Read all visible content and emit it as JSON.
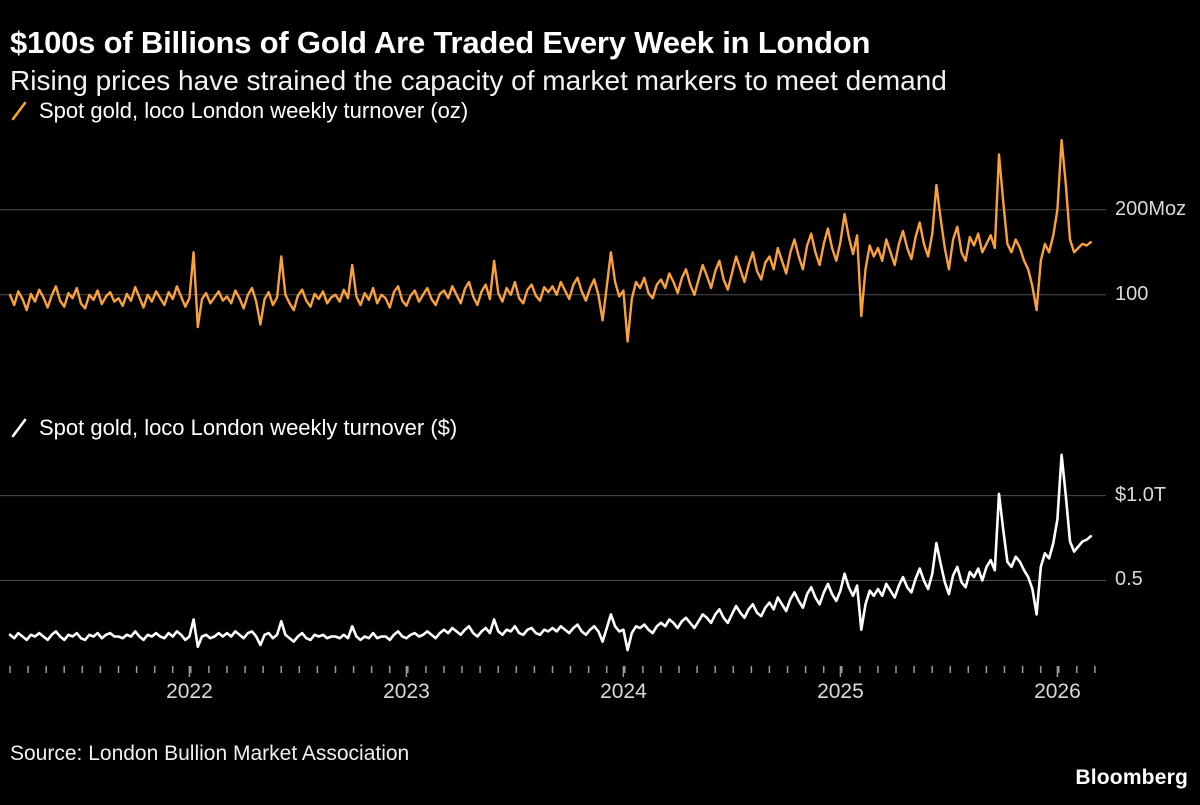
{
  "header": {
    "title": "$100s of Billions of Gold Are Traded Every Week in London",
    "subtitle": "Rising prices have strained the capacity of market markers to meet demand"
  },
  "source": "Source: London Bullion Market Association",
  "brand": "Bloomberg",
  "colors": {
    "background": "#000000",
    "oz_line": "#f9a13c",
    "usd_line": "#ffffff",
    "grid": "#4d4d4d",
    "tick": "#9a9a9a",
    "axis_text": "#d9d9d9",
    "text": "#ffffff"
  },
  "x_axis": {
    "weeks_total": 260,
    "tick_every_weeks": 4.333,
    "years": [
      {
        "label": "2022",
        "week": 43
      },
      {
        "label": "2023",
        "week": 95
      },
      {
        "label": "2024",
        "week": 147
      },
      {
        "label": "2025",
        "week": 199
      },
      {
        "label": "2026",
        "week": 251
      }
    ]
  },
  "chart_data": [
    {
      "name": "spot-gold-oz",
      "type": "line",
      "legend": "Spot gold, loco London weekly turnover (oz)",
      "unit": "Moz",
      "color": "#f9a13c",
      "stroke_width": 2.4,
      "ylim": [
        35,
        288
      ],
      "grid": true,
      "legend_position": "top-left",
      "gridlines": [
        {
          "value": 200,
          "label": "200Moz"
        },
        {
          "value": 100,
          "label": "100"
        }
      ],
      "values": [
        100,
        88,
        104,
        95,
        82,
        101,
        92,
        106,
        97,
        85,
        99,
        110,
        93,
        86,
        102,
        96,
        108,
        90,
        84,
        100,
        94,
        105,
        89,
        98,
        103,
        92,
        96,
        87,
        101,
        93,
        109,
        97,
        85,
        100,
        92,
        104,
        96,
        88,
        103,
        95,
        110,
        98,
        86,
        96,
        150,
        62,
        95,
        102,
        90,
        97,
        104,
        93,
        98,
        90,
        105,
        96,
        84,
        100,
        108,
        92,
        65,
        95,
        103,
        88,
        97,
        145,
        100,
        90,
        82,
        99,
        106,
        93,
        86,
        101,
        95,
        104,
        90,
        97,
        100,
        92,
        106,
        96,
        135,
        98,
        88,
        102,
        94,
        108,
        90,
        100,
        96,
        85,
        103,
        110,
        93,
        87,
        99,
        105,
        92,
        100,
        108,
        95,
        88,
        101,
        105,
        96,
        110,
        100,
        90,
        107,
        115,
        98,
        88,
        104,
        112,
        95,
        140,
        102,
        92,
        108,
        100,
        115,
        96,
        90,
        106,
        112,
        99,
        93,
        109,
        103,
        110,
        100,
        115,
        105,
        95,
        112,
        120,
        104,
        93,
        108,
        118,
        100,
        70,
        110,
        150,
        115,
        98,
        105,
        45,
        95,
        115,
        108,
        120,
        102,
        96,
        112,
        118,
        108,
        125,
        115,
        102,
        120,
        130,
        112,
        100,
        118,
        135,
        122,
        108,
        128,
        140,
        118,
        106,
        125,
        145,
        130,
        115,
        135,
        150,
        128,
        118,
        138,
        145,
        130,
        155,
        140,
        125,
        150,
        165,
        145,
        130,
        158,
        172,
        150,
        135,
        160,
        178,
        155,
        140,
        162,
        195,
        168,
        148,
        170,
        75,
        130,
        158,
        145,
        155,
        140,
        165,
        150,
        135,
        160,
        175,
        155,
        142,
        168,
        185,
        160,
        145,
        172,
        229,
        190,
        155,
        130,
        165,
        180,
        150,
        140,
        168,
        158,
        172,
        150,
        160,
        170,
        155,
        265,
        210,
        160,
        150,
        165,
        155,
        140,
        130,
        110,
        82,
        140,
        160,
        150,
        170,
        200,
        282,
        230,
        165,
        150,
        155,
        160,
        158,
        162
      ]
    },
    {
      "name": "spot-gold-usd",
      "type": "line",
      "legend": "Spot gold, loco London weekly turnover ($)",
      "unit": "$T",
      "color": "#ffffff",
      "stroke_width": 2.6,
      "ylim": [
        0.02,
        1.28
      ],
      "grid": true,
      "legend_position": "top-left",
      "gridlines": [
        {
          "value": 1.0,
          "label": "$1.0T"
        },
        {
          "value": 0.5,
          "label": "0.5"
        }
      ],
      "values": [
        0.18,
        0.16,
        0.19,
        0.17,
        0.15,
        0.18,
        0.17,
        0.19,
        0.17,
        0.15,
        0.18,
        0.2,
        0.17,
        0.15,
        0.18,
        0.17,
        0.19,
        0.16,
        0.15,
        0.18,
        0.17,
        0.19,
        0.16,
        0.18,
        0.19,
        0.17,
        0.17,
        0.16,
        0.18,
        0.17,
        0.2,
        0.17,
        0.15,
        0.18,
        0.17,
        0.19,
        0.17,
        0.16,
        0.19,
        0.17,
        0.2,
        0.18,
        0.15,
        0.17,
        0.27,
        0.11,
        0.17,
        0.18,
        0.16,
        0.17,
        0.19,
        0.17,
        0.19,
        0.17,
        0.2,
        0.18,
        0.16,
        0.19,
        0.2,
        0.17,
        0.12,
        0.18,
        0.19,
        0.16,
        0.18,
        0.26,
        0.18,
        0.16,
        0.14,
        0.17,
        0.19,
        0.16,
        0.15,
        0.18,
        0.17,
        0.18,
        0.16,
        0.17,
        0.17,
        0.16,
        0.18,
        0.16,
        0.23,
        0.17,
        0.15,
        0.17,
        0.16,
        0.19,
        0.16,
        0.17,
        0.17,
        0.15,
        0.18,
        0.2,
        0.17,
        0.16,
        0.18,
        0.19,
        0.17,
        0.18,
        0.2,
        0.18,
        0.16,
        0.19,
        0.21,
        0.19,
        0.22,
        0.2,
        0.18,
        0.21,
        0.23,
        0.19,
        0.17,
        0.2,
        0.22,
        0.19,
        0.27,
        0.2,
        0.18,
        0.21,
        0.2,
        0.23,
        0.19,
        0.18,
        0.21,
        0.22,
        0.19,
        0.18,
        0.21,
        0.2,
        0.22,
        0.2,
        0.23,
        0.21,
        0.19,
        0.22,
        0.24,
        0.2,
        0.18,
        0.21,
        0.23,
        0.2,
        0.14,
        0.22,
        0.3,
        0.23,
        0.2,
        0.21,
        0.09,
        0.19,
        0.23,
        0.22,
        0.24,
        0.21,
        0.19,
        0.23,
        0.25,
        0.23,
        0.27,
        0.25,
        0.22,
        0.26,
        0.28,
        0.25,
        0.22,
        0.26,
        0.3,
        0.28,
        0.25,
        0.3,
        0.33,
        0.28,
        0.25,
        0.3,
        0.35,
        0.31,
        0.28,
        0.33,
        0.36,
        0.31,
        0.29,
        0.34,
        0.37,
        0.33,
        0.4,
        0.36,
        0.32,
        0.39,
        0.43,
        0.38,
        0.34,
        0.42,
        0.46,
        0.4,
        0.36,
        0.43,
        0.48,
        0.42,
        0.38,
        0.44,
        0.54,
        0.46,
        0.41,
        0.47,
        0.21,
        0.36,
        0.44,
        0.41,
        0.45,
        0.41,
        0.48,
        0.44,
        0.4,
        0.47,
        0.52,
        0.46,
        0.43,
        0.51,
        0.57,
        0.5,
        0.45,
        0.54,
        0.72,
        0.6,
        0.49,
        0.42,
        0.53,
        0.58,
        0.49,
        0.46,
        0.55,
        0.52,
        0.57,
        0.5,
        0.58,
        0.62,
        0.56,
        1.01,
        0.8,
        0.61,
        0.58,
        0.64,
        0.61,
        0.56,
        0.52,
        0.45,
        0.3,
        0.58,
        0.66,
        0.63,
        0.72,
        0.86,
        1.24,
        1.0,
        0.73,
        0.67,
        0.7,
        0.73,
        0.74,
        0.76
      ]
    }
  ]
}
